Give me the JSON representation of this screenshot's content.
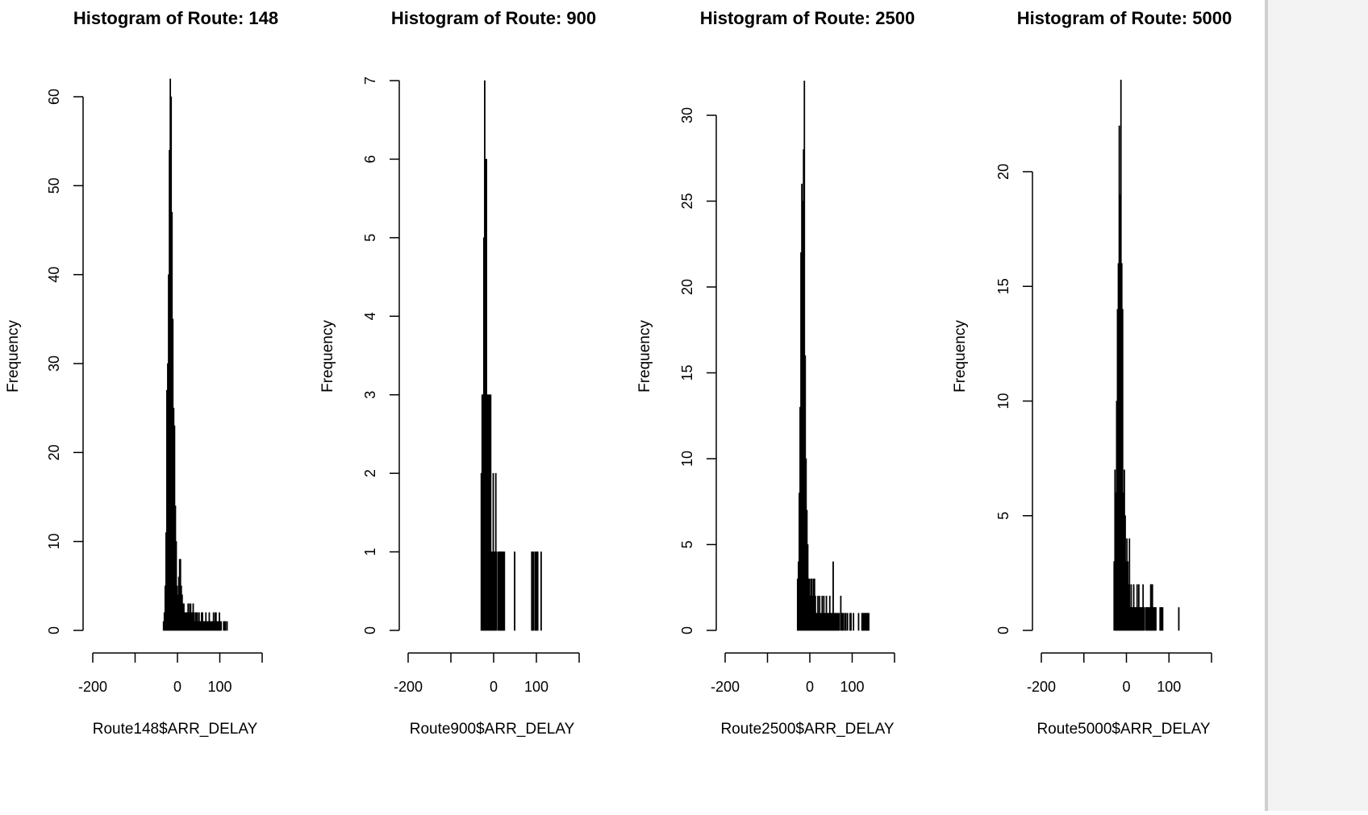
{
  "chart_data": [
    {
      "type": "bar",
      "title": "Histogram of Route: 148",
      "xlabel": "Route148$ARR_DELAY",
      "ylabel": "Frequency",
      "xlim": [
        -200,
        200
      ],
      "ylim": [
        0,
        62
      ],
      "grid": false,
      "x_ticks": [
        -200,
        -100,
        0,
        100,
        200
      ],
      "x_tick_labels": [
        "-200",
        "",
        "0",
        "100",
        ""
      ],
      "y_ticks": [
        0,
        10,
        20,
        30,
        40,
        50,
        60
      ],
      "y_tick_labels": [
        "0",
        "10",
        "20",
        "30",
        "40",
        "50",
        "60"
      ],
      "bin_start": -34,
      "bin_width": 2,
      "values": [
        1,
        2,
        5,
        11,
        27,
        30,
        40,
        54,
        62,
        60,
        47,
        35,
        25,
        23,
        14,
        10,
        5,
        4,
        6,
        8,
        8,
        5,
        4,
        3,
        3,
        2,
        2,
        2,
        2,
        3,
        2,
        3,
        3,
        2,
        2,
        3,
        2,
        1,
        2,
        2,
        2,
        1,
        2,
        1,
        1,
        2,
        2,
        1,
        1,
        1,
        2,
        1,
        1,
        1,
        2,
        1,
        1,
        1,
        1,
        2,
        1,
        2,
        2,
        1,
        1,
        1,
        2,
        1,
        1,
        0,
        0,
        1,
        1,
        1,
        0,
        1
      ]
    },
    {
      "type": "bar",
      "title": "Histogram of Route: 900",
      "xlabel": "Route900$ARR_DELAY",
      "ylabel": "Frequency",
      "xlim": [
        -200,
        200
      ],
      "ylim": [
        0,
        7
      ],
      "grid": false,
      "x_ticks": [
        -200,
        -100,
        0,
        100,
        200
      ],
      "x_tick_labels": [
        "-200",
        "",
        "0",
        "100",
        ""
      ],
      "y_ticks": [
        0,
        1,
        2,
        3,
        4,
        5,
        6,
        7
      ],
      "y_tick_labels": [
        "0",
        "1",
        "2",
        "3",
        "4",
        "5",
        "6",
        "7"
      ],
      "bin_start": -30,
      "bin_width": 2,
      "values": [
        2,
        3,
        3,
        5,
        7,
        6,
        6,
        3,
        3,
        3,
        3,
        3,
        1,
        1,
        2,
        1,
        1,
        2,
        1,
        0,
        1,
        1,
        1,
        1,
        1,
        1,
        1,
        1,
        0,
        0,
        0,
        0,
        0,
        0,
        0,
        0,
        0,
        0,
        0,
        1,
        0,
        0,
        0,
        0,
        0,
        0,
        0,
        0,
        0,
        0,
        0,
        0,
        0,
        0,
        0,
        0,
        0,
        0,
        0,
        1,
        1,
        1,
        0,
        1,
        1,
        1,
        1,
        0,
        0,
        0,
        1
      ]
    },
    {
      "type": "bar",
      "title": "Histogram of Route: 2500",
      "xlabel": "Route2500$ARR_DELAY",
      "ylabel": "Frequency",
      "xlim": [
        -200,
        200
      ],
      "ylim": [
        0,
        32
      ],
      "grid": false,
      "x_ticks": [
        -200,
        -100,
        0,
        100,
        200
      ],
      "x_tick_labels": [
        "-200",
        "",
        "0",
        "100",
        ""
      ],
      "y_ticks": [
        0,
        5,
        10,
        15,
        20,
        25,
        30
      ],
      "y_tick_labels": [
        "0",
        "5",
        "10",
        "15",
        "20",
        "25",
        "30"
      ],
      "bin_start": -30,
      "bin_width": 2,
      "values": [
        3,
        4,
        8,
        13,
        22,
        26,
        25,
        28,
        32,
        16,
        10,
        7,
        5,
        3,
        3,
        2,
        3,
        3,
        2,
        3,
        3,
        2,
        1,
        1,
        2,
        1,
        2,
        1,
        1,
        2,
        1,
        2,
        1,
        1,
        2,
        1,
        1,
        1,
        2,
        1,
        1,
        1,
        4,
        1,
        1,
        1,
        1,
        1,
        1,
        1,
        0,
        2,
        1,
        1,
        1,
        0,
        1,
        1,
        0,
        1,
        0,
        0,
        1,
        1,
        0,
        0,
        1,
        0,
        0,
        0,
        0,
        0,
        1,
        0,
        0,
        0,
        1,
        1,
        1,
        1,
        1,
        1,
        1,
        1,
        1
      ]
    },
    {
      "type": "bar",
      "title": "Histogram of Route: 5000",
      "xlabel": "Route5000$ARR_DELAY",
      "ylabel": "Frequency",
      "xlim": [
        -200,
        200
      ],
      "ylim": [
        0,
        24
      ],
      "grid": false,
      "x_ticks": [
        -200,
        -100,
        0,
        100,
        200
      ],
      "x_tick_labels": [
        "-200",
        "",
        "0",
        "100",
        ""
      ],
      "y_ticks": [
        0,
        5,
        10,
        15,
        20
      ],
      "y_tick_labels": [
        "0",
        "5",
        "10",
        "15",
        "20"
      ],
      "bin_start": -30,
      "bin_width": 2,
      "values": [
        3,
        7,
        6,
        10,
        14,
        16,
        22,
        19,
        24,
        16,
        14,
        6,
        7,
        5,
        3,
        4,
        3,
        2,
        4,
        1,
        2,
        1,
        1,
        2,
        1,
        1,
        1,
        2,
        1,
        2,
        1,
        1,
        1,
        1,
        2,
        1,
        0,
        1,
        1,
        1,
        1,
        1,
        1,
        2,
        2,
        2,
        1,
        1,
        1,
        1,
        0,
        0,
        0,
        0,
        1,
        1,
        1,
        1,
        0,
        0,
        0,
        0,
        0,
        0,
        0,
        0,
        0,
        0,
        0,
        0,
        0,
        0,
        0,
        0,
        0,
        0,
        1
      ]
    }
  ]
}
